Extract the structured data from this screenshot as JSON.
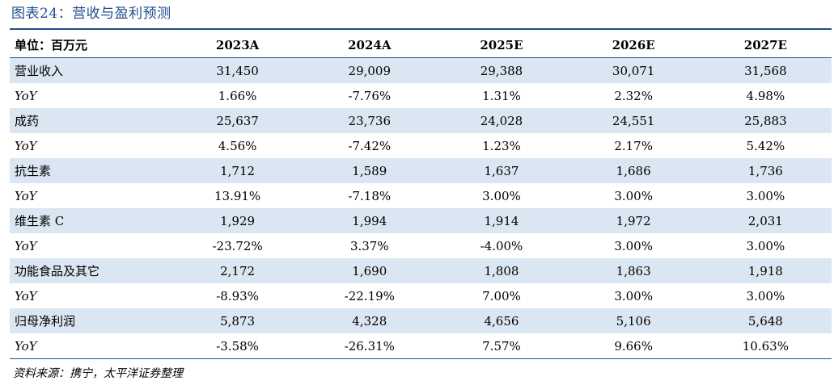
{
  "title": "图表24：营收与盈利预测",
  "table": {
    "header": [
      "单位：百万元",
      "2023A",
      "2024A",
      "2025E",
      "2026E",
      "2027E"
    ],
    "rows": [
      {
        "label": "营业收入",
        "values": [
          "31,450",
          "29,009",
          "29,388",
          "30,071",
          "31,568"
        ]
      },
      {
        "label": "YoY",
        "values": [
          "1.66%",
          "-7.76%",
          "1.31%",
          "2.32%",
          "4.98%"
        ]
      },
      {
        "label": "成药",
        "values": [
          "25,637",
          "23,736",
          "24,028",
          "24,551",
          "25,883"
        ]
      },
      {
        "label": "YoY",
        "values": [
          "4.56%",
          "-7.42%",
          "1.23%",
          "2.17%",
          "5.42%"
        ]
      },
      {
        "label": "抗生素",
        "values": [
          "1,712",
          "1,589",
          "1,637",
          "1,686",
          "1,736"
        ]
      },
      {
        "label": "YoY",
        "values": [
          "13.91%",
          "-7.18%",
          "3.00%",
          "3.00%",
          "3.00%"
        ]
      },
      {
        "label": "维生素 C",
        "values": [
          "1,929",
          "1,994",
          "1,914",
          "1,972",
          "2,031"
        ]
      },
      {
        "label": "YoY",
        "values": [
          "-23.72%",
          "3.37%",
          "-4.00%",
          "3.00%",
          "3.00%"
        ]
      },
      {
        "label": "功能食品及其它",
        "values": [
          "2,172",
          "1,690",
          "1,808",
          "1,863",
          "1,918"
        ]
      },
      {
        "label": "YoY",
        "values": [
          "-8.93%",
          "-22.19%",
          "7.00%",
          "3.00%",
          "3.00%"
        ]
      },
      {
        "label": "归母净利润",
        "values": [
          "5,873",
          "4,328",
          "4,656",
          "5,106",
          "5,648"
        ]
      },
      {
        "label": "YoY",
        "values": [
          "-3.58%",
          "-26.31%",
          "7.57%",
          "9.66%",
          "10.63%"
        ]
      }
    ]
  },
  "source": "资料来源：携宁，太平洋证券整理"
}
